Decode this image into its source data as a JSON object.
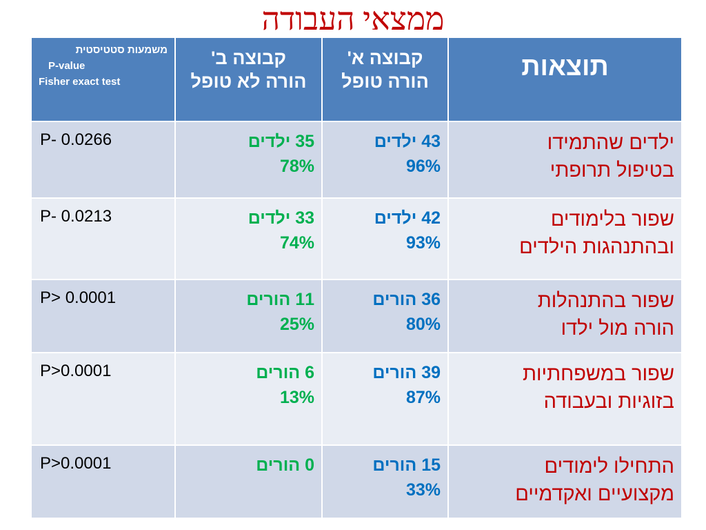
{
  "slide": {
    "title": "ממצאי העבודה"
  },
  "table": {
    "headers": {
      "results": "תוצאות",
      "group_a": [
        "קבוצה א'",
        "הורה טופל"
      ],
      "group_b": [
        "קבוצה ב'",
        "הורה לא טופל"
      ],
      "p_value": {
        "title_he": "משמעות סטטיסטית",
        "label": "P-value",
        "method": "Fisher exact  test"
      }
    },
    "rows": [
      {
        "result": [
          "ילדים שהתמידו",
          "בטיפול תרופתי"
        ],
        "group_a": [
          "43 ילדים",
          "96%"
        ],
        "group_b": [
          "35 ילדים",
          "78%"
        ],
        "p_value": "P- 0.0266"
      },
      {
        "result": [
          "שפור בלימודים",
          "ובהתנהגות הילדים"
        ],
        "group_a": [
          "42 ילדים",
          "93%"
        ],
        "group_b": [
          "33 ילדים",
          "74%"
        ],
        "p_value": "P- 0.0213"
      },
      {
        "result": [
          "שפור בהתנהלות",
          "הורה מול ילדו"
        ],
        "group_a": [
          "36 הורים",
          "80%"
        ],
        "group_b": [
          "11 הורים",
          "25%"
        ],
        "p_value": "P> 0.0001"
      },
      {
        "result": [
          "שפור במשפחתיות",
          "בזוגיות ובעבודה"
        ],
        "group_a": [
          "39 הורים",
          "87%"
        ],
        "group_b": [
          "6 הורים",
          "13%"
        ],
        "p_value": "P>0.0001"
      },
      {
        "result": [
          "התחילו לימודים",
          "מקצועיים ואקדמיים"
        ],
        "group_a": [
          "15 הורים",
          "33%"
        ],
        "group_b": [
          "0 הורים",
          ""
        ],
        "p_value": "P>0.0001"
      }
    ]
  },
  "colors": {
    "title": "#c00000",
    "header_bg": "#4f81bd",
    "row_odd_bg": "#d0d8e8",
    "row_even_bg": "#e9edf4",
    "result_text": "#c00000",
    "group_a_text": "#0070c0",
    "group_b_text": "#00b050"
  }
}
